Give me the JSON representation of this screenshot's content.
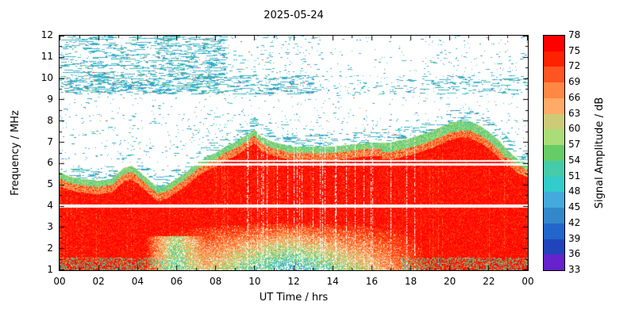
{
  "chart_data": {
    "type": "heatmap",
    "title": "2025-05-24",
    "xlabel": "UT Time / hrs",
    "ylabel": "Frequency / MHz",
    "colorbar_label": "Signal Amplitude / dB",
    "x_range_hours": [
      0,
      24
    ],
    "x_tick_step_hours": 2,
    "x_tick_labels": [
      "00",
      "02",
      "04",
      "06",
      "08",
      "10",
      "12",
      "14",
      "16",
      "18",
      "20",
      "22",
      "00"
    ],
    "y_range_mhz": [
      1,
      12
    ],
    "y_tick_labels": [
      "1",
      "2",
      "3",
      "4",
      "5",
      "6",
      "7",
      "8",
      "9",
      "10",
      "11",
      "12"
    ],
    "colorbar_ticks_low_to_high": [
      33,
      36,
      39,
      42,
      45,
      48,
      51,
      54,
      57,
      60,
      63,
      66,
      69,
      72,
      75,
      78
    ],
    "colorbar_colors_low_to_high": [
      "#6622cc",
      "#2244bb",
      "#2266cc",
      "#3388cc",
      "#44aadd",
      "#33cccc",
      "#44ccaa",
      "#66cc66",
      "#aadd77",
      "#cccc77",
      "#ffaa66",
      "#ff8844",
      "#ff5522",
      "#ff2200",
      "#ff0000"
    ],
    "strong_signal_envelope": {
      "description": "Upper frequency limit (MHz) of the strong red (>72 dB) signal region versus UT hour, estimated from the plot",
      "points": [
        [
          0,
          5.6
        ],
        [
          0.5,
          5.4
        ],
        [
          1,
          5.3
        ],
        [
          2,
          5.2
        ],
        [
          2.7,
          5.3
        ],
        [
          3.3,
          5.8
        ],
        [
          3.7,
          5.9
        ],
        [
          4,
          5.7
        ],
        [
          4.5,
          5.3
        ],
        [
          5,
          4.9
        ],
        [
          5.5,
          5.0
        ],
        [
          6,
          5.3
        ],
        [
          6.5,
          5.6
        ],
        [
          7,
          6.0
        ],
        [
          7.5,
          6.3
        ],
        [
          8,
          6.5
        ],
        [
          8.5,
          6.8
        ],
        [
          9,
          7.0
        ],
        [
          9.5,
          7.3
        ],
        [
          10,
          7.6
        ],
        [
          10.3,
          7.3
        ],
        [
          10.7,
          7.1
        ],
        [
          11,
          7.0
        ],
        [
          11.5,
          6.9
        ],
        [
          12,
          6.8
        ],
        [
          13,
          6.8
        ],
        [
          14,
          6.8
        ],
        [
          15,
          6.9
        ],
        [
          16,
          7.0
        ],
        [
          17,
          7.0
        ],
        [
          18,
          7.2
        ],
        [
          19,
          7.5
        ],
        [
          20,
          7.9
        ],
        [
          20.5,
          8.0
        ],
        [
          21,
          8.0
        ],
        [
          21.5,
          7.8
        ],
        [
          22,
          7.5
        ],
        [
          22.5,
          7.1
        ],
        [
          23,
          6.6
        ],
        [
          23.5,
          6.2
        ],
        [
          24,
          6.0
        ]
      ]
    },
    "white_interference_bands_mhz": [
      [
        3.93,
        4.1
      ],
      [
        5.9,
        6.0
      ],
      [
        6.08,
        6.17
      ]
    ],
    "scatter_band_mhz": [
      9.25,
      10.15
    ],
    "signal_levels_db": {
      "strong_region": 75,
      "edge_fringe": 54,
      "scattered_noise": 45,
      "background": null
    }
  }
}
